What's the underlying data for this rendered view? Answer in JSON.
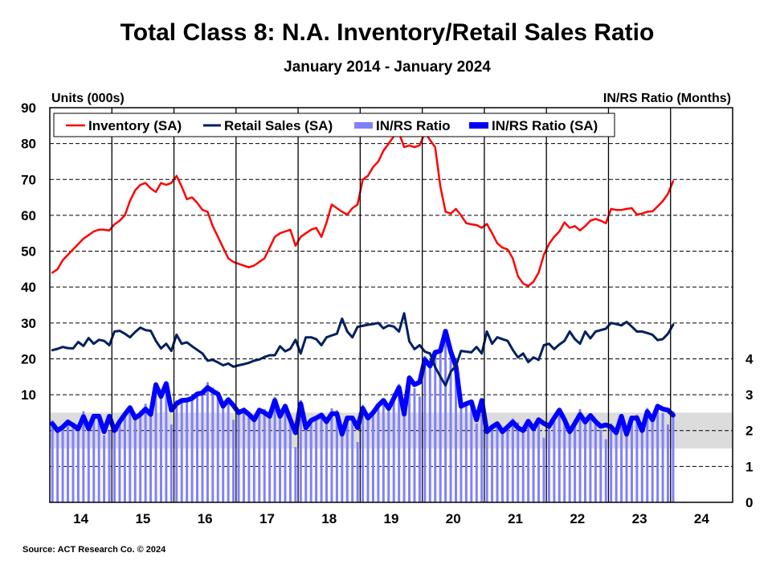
{
  "chart_data": {
    "type": "bar+line",
    "title": "Total Class 8: N.A. Inventory/Retail Sales Ratio",
    "subtitle": "January 2014 - January 2024",
    "ylabel_left": "Units (000s)",
    "ylabel_right": "IN/RS Ratio (Months)",
    "source": "Source: ACT Research Co. © 2024",
    "x_start": "2014-01",
    "x_end": "2024-01",
    "x_frequency": "monthly",
    "x_tick_labels": [
      "14",
      "15",
      "16",
      "17",
      "18",
      "19",
      "20",
      "21",
      "22",
      "23",
      "24"
    ],
    "xlim": [
      "2014-01",
      "2024-12"
    ],
    "ylim_left": [
      -20,
      90
    ],
    "yticks_left": [
      10,
      20,
      30,
      40,
      50,
      60,
      70,
      80,
      90
    ],
    "ylim_right": [
      0,
      11
    ],
    "yticks_right": [
      0,
      1,
      2,
      3,
      4
    ],
    "grid": "horizontal dashed, vertical solid at year boundaries",
    "shaded_band_right_axis": [
      1.5,
      2.5
    ],
    "legend_position": "top-left",
    "series": [
      {
        "name": "Inventory (SA)",
        "axis": "left",
        "type": "line",
        "color": "#ff0000",
        "values": [
          44,
          45,
          47.5,
          49,
          50.5,
          52,
          53.5,
          54.5,
          55.5,
          56,
          56,
          55.8,
          57.5,
          58.5,
          60,
          64,
          67,
          68.5,
          69,
          67.5,
          66.5,
          69,
          68.5,
          69,
          71,
          68,
          64.5,
          65,
          63.5,
          61.5,
          61,
          57,
          54,
          51,
          48,
          47,
          46.5,
          46,
          45.5,
          46,
          47,
          48,
          51,
          54,
          55,
          55.5,
          56,
          51.5,
          54,
          55,
          56,
          56.5,
          54,
          58,
          63,
          62,
          61,
          60.2,
          62,
          63,
          70,
          71,
          73.5,
          75,
          78,
          80,
          82,
          83,
          79,
          79.5,
          79,
          79.5,
          83,
          81,
          79,
          68,
          61,
          60.5,
          61.8,
          60,
          57.8,
          57.5,
          57.3,
          56.5,
          57.6,
          55,
          52.2,
          51,
          50.5,
          48,
          43,
          41,
          40.3,
          41.5,
          44,
          49,
          52,
          54,
          55.5,
          58,
          56.5,
          57,
          55.8,
          57,
          58.5,
          59,
          58.5,
          57.8,
          61.8,
          61.5,
          61.5,
          61.8,
          62,
          60.2,
          60.5,
          61,
          61.1,
          62.5,
          64,
          66,
          69.5
        ]
      },
      {
        "name": "Retail Sales (SA)",
        "axis": "left",
        "type": "line",
        "color": "#002060",
        "values": [
          22.4,
          22.8,
          23.3,
          23,
          22.9,
          24.7,
          23.6,
          25.8,
          24.2,
          25.3,
          25,
          23.8,
          27.6,
          27.8,
          27,
          26,
          27.5,
          28.7,
          28,
          27.8,
          25,
          22.9,
          24.2,
          22.2,
          26.7,
          24.2,
          24.6,
          23.5,
          22.5,
          21.5,
          19.5,
          19.7,
          19,
          18.2,
          18.7,
          17.8,
          18.2,
          18.5,
          18.9,
          19.5,
          19.8,
          20.5,
          21,
          21,
          23.5,
          22.1,
          22.8,
          25.3,
          21.5,
          26,
          26,
          25.5,
          23.8,
          26,
          26.5,
          27,
          31.2,
          27.6,
          26,
          28.9,
          29.2,
          29.5,
          29.7,
          30,
          28.5,
          29.3,
          29,
          27.6,
          32.7,
          24.9,
          22.7,
          23.8,
          22,
          21.5,
          17.7,
          15,
          12.6,
          16.4,
          18,
          22.2,
          22,
          21.8,
          23.3,
          21.5,
          27.6,
          24.2,
          26,
          25.5,
          25,
          22.5,
          20.4,
          21.5,
          19.1,
          20.4,
          19.7,
          23.8,
          24.2,
          22.7,
          24,
          25,
          27.6,
          25.5,
          24.2,
          27.6,
          25.7,
          27.6,
          28,
          28.4,
          30,
          29.7,
          29.3,
          30.3,
          29,
          27.6,
          27.6,
          27.2,
          26.7,
          25.2,
          25.5,
          27,
          29.5
        ]
      },
      {
        "name": "IN/RS Ratio",
        "axis": "right",
        "type": "bar",
        "color": "#8080ff",
        "values": [
          2.29,
          2.05,
          2.1,
          2.19,
          2.2,
          2.15,
          2.54,
          2.15,
          2.45,
          2.35,
          1.87,
          2.0,
          2.1,
          2.3,
          2.45,
          2.59,
          2.4,
          2.55,
          2.75,
          2.55,
          3.33,
          2.9,
          3.21,
          2.17,
          2.85,
          2.89,
          2.85,
          2.85,
          3.07,
          3.15,
          3.35,
          3.2,
          3.07,
          2.63,
          2.76,
          2.3,
          2.6,
          2.62,
          2.45,
          2.25,
          2.62,
          2.6,
          2.55,
          2.94,
          2.45,
          2.63,
          2.2,
          1.54,
          2.85,
          2.13,
          2.28,
          2.3,
          2.48,
          2.35,
          2.62,
          2.57,
          1.95,
          2.3,
          2.25,
          1.68,
          2.72,
          2.4,
          2.5,
          2.65,
          2.89,
          2.72,
          3.05,
          3.3,
          2.51,
          3.42,
          3.18,
          2.95,
          4.08,
          3.85,
          4.18,
          4.17,
          4.82,
          4.3,
          3.95,
          2.78,
          2.8,
          2.75,
          2.2,
          2.44,
          2.07,
          2.15,
          2.19,
          1.92,
          2.15,
          2.34,
          2.23,
          2.1,
          2.31,
          2.0,
          2.2,
          1.8,
          2.22,
          2.4,
          2.57,
          2.25,
          2.02,
          2.3,
          2.6,
          2.34,
          2.47,
          2.2,
          2.02,
          1.76,
          2.2,
          1.99,
          2.4,
          1.85,
          2.4,
          2.45,
          2.15,
          2.63,
          2.35,
          2.63,
          2.5,
          2.17,
          2.53
        ]
      },
      {
        "name": "IN/RS Ratio (SA)",
        "axis": "right",
        "type": "line",
        "color": "#0000ff",
        "values": [
          2.19,
          2.0,
          2.1,
          2.24,
          2.15,
          2.05,
          2.39,
          2.05,
          2.4,
          2.4,
          1.97,
          2.4,
          2.0,
          2.25,
          2.45,
          2.64,
          2.35,
          2.45,
          2.6,
          2.45,
          3.28,
          2.95,
          3.31,
          2.57,
          2.75,
          2.84,
          2.85,
          2.9,
          3.02,
          3.05,
          3.2,
          3.1,
          3.02,
          2.68,
          2.86,
          2.7,
          2.5,
          2.57,
          2.45,
          2.3,
          2.57,
          2.5,
          2.4,
          2.84,
          2.4,
          2.68,
          2.3,
          1.94,
          2.75,
          2.08,
          2.28,
          2.35,
          2.43,
          2.25,
          2.47,
          2.47,
          1.9,
          2.35,
          2.35,
          2.08,
          2.62,
          2.35,
          2.5,
          2.7,
          2.84,
          2.62,
          2.9,
          3.2,
          2.46,
          3.47,
          3.28,
          3.35,
          3.98,
          3.8,
          4.18,
          4.22,
          4.77,
          4.2,
          3.8,
          2.68,
          2.75,
          2.8,
          2.3,
          2.84,
          1.97,
          2.1,
          2.19,
          1.97,
          2.1,
          2.24,
          2.08,
          2.0,
          2.26,
          2.05,
          2.3,
          2.2,
          2.12,
          2.35,
          2.57,
          2.3,
          1.97,
          2.2,
          2.45,
          2.24,
          2.42,
          2.25,
          2.12,
          2.16,
          2.1,
          1.94,
          2.4,
          1.9,
          2.35,
          2.35,
          2.0,
          2.53,
          2.3,
          2.68,
          2.6,
          2.57,
          2.43
        ]
      }
    ],
    "colors": {
      "band": "#dcdcdc",
      "grid": "#000000"
    }
  }
}
